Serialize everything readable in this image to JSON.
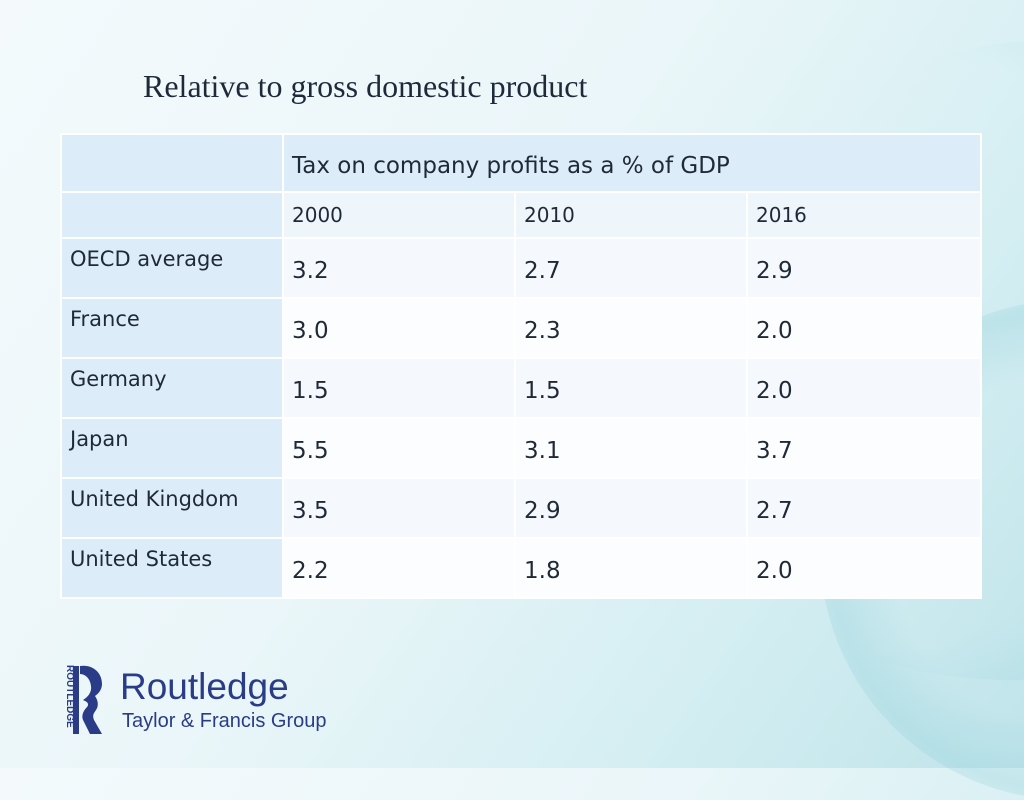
{
  "slide": {
    "title": "Relative to gross domestic product"
  },
  "table": {
    "header": "Tax on company profits as a % of GDP",
    "years": [
      "2000",
      "2010",
      "2016"
    ],
    "rows": [
      {
        "country": "OECD average",
        "values": [
          "3.2",
          "2.7",
          "2.9"
        ]
      },
      {
        "country": "France",
        "values": [
          "3.0",
          "2.3",
          "2.0"
        ]
      },
      {
        "country": "Germany",
        "values": [
          "1.5",
          "1.5",
          "2.0"
        ]
      },
      {
        "country": "Japan",
        "values": [
          "5.5",
          "3.1",
          "3.7"
        ]
      },
      {
        "country": "United Kingdom",
        "values": [
          "3.5",
          "2.9",
          "2.7"
        ]
      },
      {
        "country": "United States",
        "values": [
          "2.2",
          "1.8",
          "2.0"
        ]
      }
    ]
  },
  "logo": {
    "brand": "Routledge",
    "group": "Taylor & Francis Group",
    "vertical_text": "ROUTLEDGE",
    "color": "#2a3c88"
  }
}
